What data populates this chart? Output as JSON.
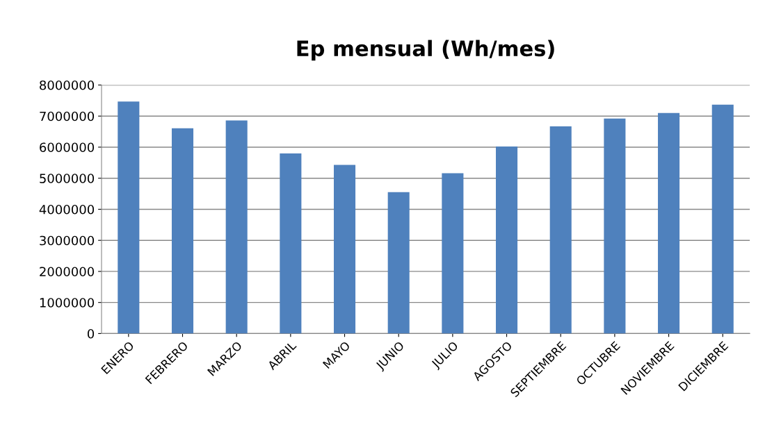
{
  "chart_data": {
    "type": "bar",
    "title": "Ep mensual (Wh/mes)",
    "categories": [
      "ENERO",
      "FEBRERO",
      "MARZO",
      "ABRIL",
      "MAYO",
      "JUNIO",
      "JULIO",
      "AGOSTO",
      "SEPTIEMBRE",
      "OCTUBRE",
      "NOVIEMBRE",
      "DICIEMBRE"
    ],
    "values": [
      7470000,
      6610000,
      6860000,
      5800000,
      5430000,
      4550000,
      5160000,
      6020000,
      6670000,
      6920000,
      7100000,
      7370000
    ],
    "color": "#4f81bd",
    "ylim": [
      0,
      8000000
    ],
    "yticks": [
      0,
      1000000,
      2000000,
      3000000,
      4000000,
      5000000,
      6000000,
      7000000,
      8000000
    ],
    "grid": "y",
    "legend": false
  }
}
